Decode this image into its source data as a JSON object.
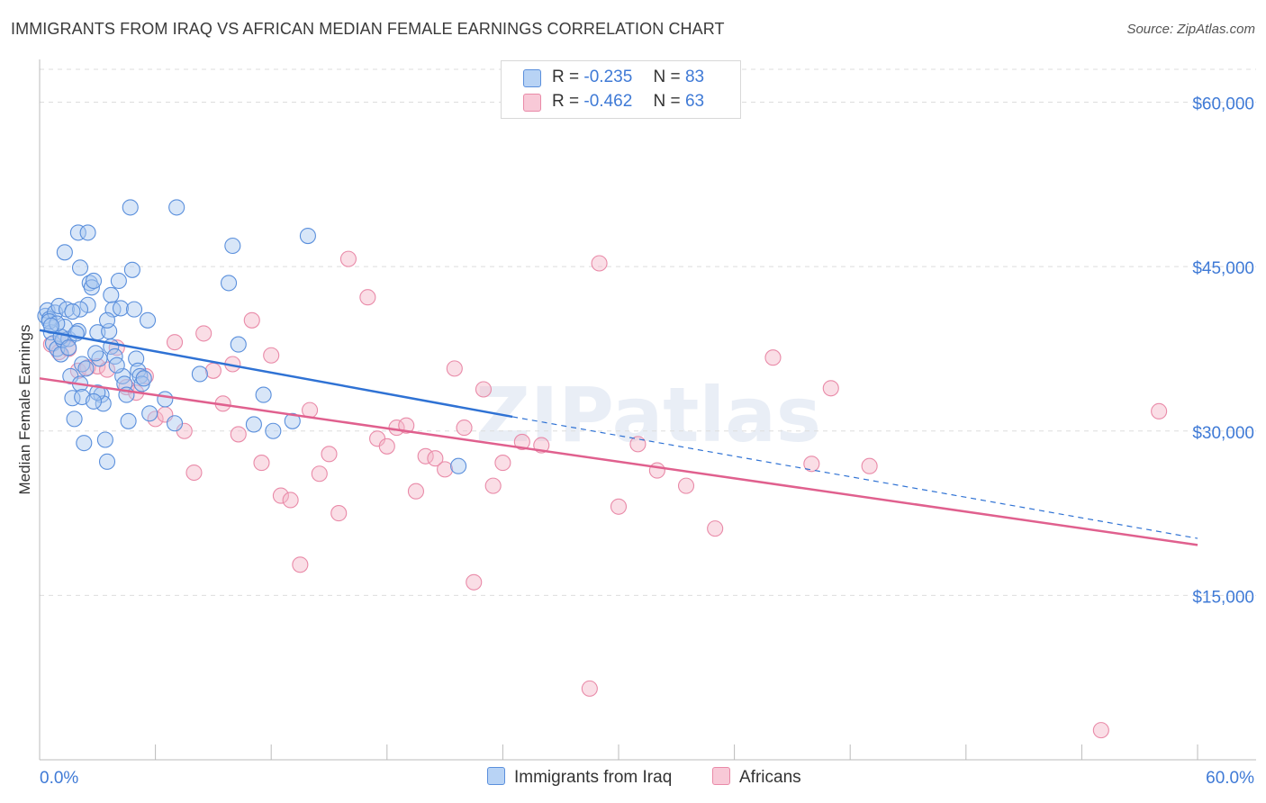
{
  "header": {
    "title": "IMMIGRANTS FROM IRAQ VS AFRICAN MEDIAN FEMALE EARNINGS CORRELATION CHART",
    "source": "Source: ZipAtlas.com"
  },
  "legend": {
    "items": [
      {
        "r_label": "R =",
        "r_value": "-0.235",
        "n_label": "N =",
        "n_value": "83"
      },
      {
        "r_label": "R =",
        "r_value": "-0.462",
        "n_label": "N =",
        "n_value": "63"
      }
    ]
  },
  "bottom_legend": {
    "items": [
      {
        "label": "Immigrants from Iraq"
      },
      {
        "label": "Africans"
      }
    ]
  },
  "watermark": "ZIPatlas",
  "colors": {
    "blue_fill": "#a8c8f0",
    "blue_stroke": "#5a8fdc",
    "blue_line": "#2f72d4",
    "pink_fill": "#f5b6c8",
    "pink_stroke": "#e98aa8",
    "pink_line": "#e0608e",
    "axis_text": "#3f7ad6",
    "grid": "#dddddd"
  },
  "chart_data": {
    "type": "scatter",
    "title": "IMMIGRANTS FROM IRAQ VS AFRICAN MEDIAN FEMALE EARNINGS CORRELATION CHART",
    "xlabel": "",
    "ylabel": "Median Female Earnings",
    "xlim": [
      0,
      60
    ],
    "ylim": [
      0,
      63000
    ],
    "x_tick_labels": [
      "0.0%",
      "60.0%"
    ],
    "y_ticks": [
      15000,
      30000,
      45000,
      60000
    ],
    "y_tick_labels": [
      "$15,000",
      "$30,000",
      "$45,000",
      "$60,000"
    ],
    "grid": true,
    "legend_position": "top-center",
    "series": [
      {
        "name": "Immigrants from Iraq",
        "color": "#5a8fdc",
        "trend": {
          "x": [
            0,
            24.5
          ],
          "y": [
            39200,
            31300
          ],
          "dashed_extension_to": [
            60,
            20200
          ]
        },
        "points": [
          [
            0.3,
            40500
          ],
          [
            0.4,
            41000
          ],
          [
            0.5,
            40200
          ],
          [
            0.6,
            39000
          ],
          [
            0.7,
            38000
          ],
          [
            0.8,
            40800
          ],
          [
            0.9,
            37500
          ],
          [
            1.0,
            41400
          ],
          [
            1.1,
            37000
          ],
          [
            1.2,
            38300
          ],
          [
            1.3,
            39500
          ],
          [
            1.4,
            41100
          ],
          [
            1.5,
            38400
          ],
          [
            1.6,
            35000
          ],
          [
            1.7,
            33000
          ],
          [
            1.8,
            31100
          ],
          [
            2.0,
            39100
          ],
          [
            2.1,
            34300
          ],
          [
            2.2,
            33100
          ],
          [
            2.3,
            28900
          ],
          [
            2.0,
            48100
          ],
          [
            2.5,
            48100
          ],
          [
            1.3,
            46300
          ],
          [
            2.1,
            44900
          ],
          [
            2.6,
            43500
          ],
          [
            2.7,
            43100
          ],
          [
            2.8,
            43700
          ],
          [
            2.5,
            41500
          ],
          [
            2.1,
            41100
          ],
          [
            3.0,
            39000
          ],
          [
            3.1,
            36600
          ],
          [
            3.2,
            33300
          ],
          [
            3.3,
            32500
          ],
          [
            3.4,
            29200
          ],
          [
            3.5,
            27200
          ],
          [
            3.7,
            42400
          ],
          [
            3.8,
            41100
          ],
          [
            3.6,
            39100
          ],
          [
            3.7,
            37700
          ],
          [
            3.9,
            36800
          ],
          [
            4.1,
            43700
          ],
          [
            4.2,
            41200
          ],
          [
            4.3,
            35000
          ],
          [
            4.4,
            34300
          ],
          [
            4.5,
            33300
          ],
          [
            4.6,
            30900
          ],
          [
            4.8,
            44700
          ],
          [
            4.9,
            41100
          ],
          [
            5.0,
            36600
          ],
          [
            5.1,
            35500
          ],
          [
            5.2,
            35000
          ],
          [
            5.3,
            34300
          ],
          [
            5.6,
            40100
          ],
          [
            5.7,
            31600
          ],
          [
            4.7,
            50400
          ],
          [
            7.1,
            50400
          ],
          [
            6.5,
            32900
          ],
          [
            7.0,
            30700
          ],
          [
            8.3,
            35200
          ],
          [
            10.0,
            46900
          ],
          [
            9.8,
            43500
          ],
          [
            10.3,
            37900
          ],
          [
            11.1,
            30600
          ],
          [
            11.6,
            33300
          ],
          [
            12.1,
            30000
          ],
          [
            13.1,
            30900
          ],
          [
            13.9,
            47800
          ],
          [
            21.7,
            26800
          ],
          [
            1.1,
            38600
          ],
          [
            1.5,
            37600
          ],
          [
            0.5,
            40000
          ],
          [
            2.9,
            37100
          ],
          [
            3.5,
            40100
          ],
          [
            2.2,
            36100
          ],
          [
            1.7,
            40900
          ],
          [
            0.9,
            39800
          ],
          [
            3.0,
            33500
          ],
          [
            4.0,
            36000
          ],
          [
            2.4,
            35700
          ],
          [
            1.9,
            38900
          ],
          [
            2.8,
            32700
          ],
          [
            0.6,
            39600
          ],
          [
            5.4,
            34800
          ]
        ]
      },
      {
        "name": "Africans",
        "color": "#e98aa8",
        "trend": {
          "x": [
            0,
            60
          ],
          "y": [
            34800,
            19600
          ]
        },
        "points": [
          [
            0.6,
            37900
          ],
          [
            1.0,
            37200
          ],
          [
            1.2,
            38300
          ],
          [
            1.5,
            37500
          ],
          [
            2.0,
            35500
          ],
          [
            2.5,
            35800
          ],
          [
            3.0,
            35900
          ],
          [
            3.5,
            35600
          ],
          [
            4.0,
            37600
          ],
          [
            4.5,
            34000
          ],
          [
            5.0,
            33500
          ],
          [
            5.5,
            35000
          ],
          [
            6.0,
            31100
          ],
          [
            6.5,
            31500
          ],
          [
            7.0,
            38100
          ],
          [
            7.5,
            30000
          ],
          [
            8.0,
            26200
          ],
          [
            8.5,
            38900
          ],
          [
            9.0,
            35500
          ],
          [
            9.5,
            32500
          ],
          [
            10.0,
            36100
          ],
          [
            10.3,
            29700
          ],
          [
            11.0,
            40100
          ],
          [
            11.5,
            27100
          ],
          [
            12.0,
            36900
          ],
          [
            12.5,
            24100
          ],
          [
            13.0,
            23700
          ],
          [
            13.5,
            17800
          ],
          [
            14.0,
            31900
          ],
          [
            14.5,
            26100
          ],
          [
            15.0,
            27900
          ],
          [
            15.5,
            22500
          ],
          [
            16.0,
            45700
          ],
          [
            17.0,
            42200
          ],
          [
            17.5,
            29300
          ],
          [
            18.0,
            28600
          ],
          [
            18.5,
            30300
          ],
          [
            19.0,
            30500
          ],
          [
            19.5,
            24500
          ],
          [
            20.0,
            27700
          ],
          [
            20.5,
            27500
          ],
          [
            21.0,
            26500
          ],
          [
            21.5,
            35700
          ],
          [
            22.0,
            30300
          ],
          [
            22.5,
            16200
          ],
          [
            23.0,
            33800
          ],
          [
            23.5,
            25000
          ],
          [
            24.0,
            27100
          ],
          [
            25.0,
            29000
          ],
          [
            26.0,
            28700
          ],
          [
            28.5,
            6500
          ],
          [
            29.0,
            45300
          ],
          [
            30.0,
            23100
          ],
          [
            31.0,
            28800
          ],
          [
            32.0,
            26400
          ],
          [
            33.5,
            25000
          ],
          [
            35.0,
            21100
          ],
          [
            38.0,
            36700
          ],
          [
            40.0,
            27000
          ],
          [
            41.0,
            33900
          ],
          [
            43.0,
            26800
          ],
          [
            55.0,
            2700
          ],
          [
            58.0,
            31800
          ]
        ]
      }
    ]
  }
}
